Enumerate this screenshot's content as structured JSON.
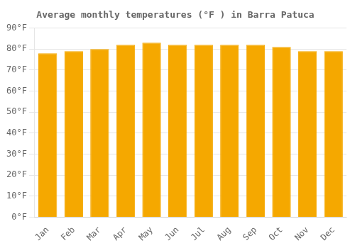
{
  "chart_data": {
    "type": "bar",
    "title": "Average monthly temperatures (°F ) in Barra Patuca",
    "categories": [
      "Jan",
      "Feb",
      "Mar",
      "Apr",
      "May",
      "Jun",
      "Jul",
      "Aug",
      "Sep",
      "Oct",
      "Nov",
      "Dec"
    ],
    "values": [
      78,
      79,
      80,
      82,
      83,
      82,
      82,
      82,
      82,
      81,
      79,
      79
    ],
    "color": "#F5A800",
    "ylim": [
      0,
      90
    ],
    "yticks": [
      {
        "value": 0,
        "label": "0°F"
      },
      {
        "value": 10,
        "label": "10°F"
      },
      {
        "value": 20,
        "label": "20°F"
      },
      {
        "value": 30,
        "label": "30°F"
      },
      {
        "value": 40,
        "label": "40°F"
      },
      {
        "value": 50,
        "label": "50°F"
      },
      {
        "value": 60,
        "label": "60°F"
      },
      {
        "value": 70,
        "label": "70°F"
      },
      {
        "value": 80,
        "label": "80°F"
      },
      {
        "value": 90,
        "label": "90°F"
      }
    ],
    "grid": true
  }
}
